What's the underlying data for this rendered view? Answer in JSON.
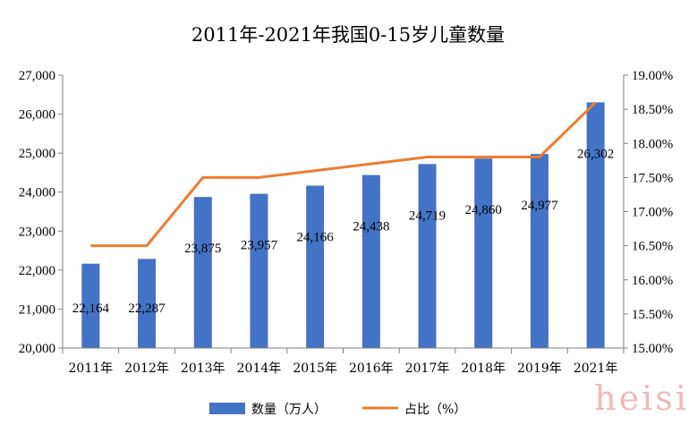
{
  "chart_data": {
    "type": "bar",
    "title": "2011年-2021年我国0-15岁儿童数量",
    "categories": [
      "2011年",
      "2012年",
      "2013年",
      "2014年",
      "2015年",
      "2016年",
      "2017年",
      "2018年",
      "2019年",
      "2021年"
    ],
    "series": [
      {
        "name": "数量（万人）",
        "type": "bar",
        "axis": "left",
        "color": "#4472C4",
        "values": [
          22164,
          22287,
          23875,
          23957,
          24166,
          24438,
          24719,
          24860,
          24977,
          26302
        ],
        "labels": [
          "22,164",
          "22,287",
          "23,875",
          "23,957",
          "24,166",
          "24,438",
          "24,719",
          "24,860",
          "24,977",
          "26,302"
        ]
      },
      {
        "name": "占比（%）",
        "type": "line",
        "axis": "right",
        "color": "#ED7D31",
        "values": [
          16.5,
          16.5,
          17.5,
          17.5,
          17.6,
          17.7,
          17.8,
          17.8,
          17.8,
          18.6
        ]
      }
    ],
    "y_left": {
      "min": 20000,
      "max": 27000,
      "ticks": [
        20000,
        21000,
        22000,
        23000,
        24000,
        25000,
        26000,
        27000
      ],
      "tick_labels": [
        "20,000",
        "21,000",
        "22,000",
        "23,000",
        "24,000",
        "25,000",
        "26,000",
        "27,000"
      ]
    },
    "y_right": {
      "min": 15.0,
      "max": 19.0,
      "ticks": [
        15.0,
        15.5,
        16.0,
        16.5,
        17.0,
        17.5,
        18.0,
        18.5,
        19.0
      ],
      "tick_labels": [
        "15.00%",
        "15.50%",
        "16.00%",
        "16.50%",
        "17.00%",
        "17.50%",
        "18.00%",
        "18.50%",
        "19.00%"
      ]
    },
    "grid": false,
    "legend_position": "bottom"
  },
  "watermark": "heisi"
}
